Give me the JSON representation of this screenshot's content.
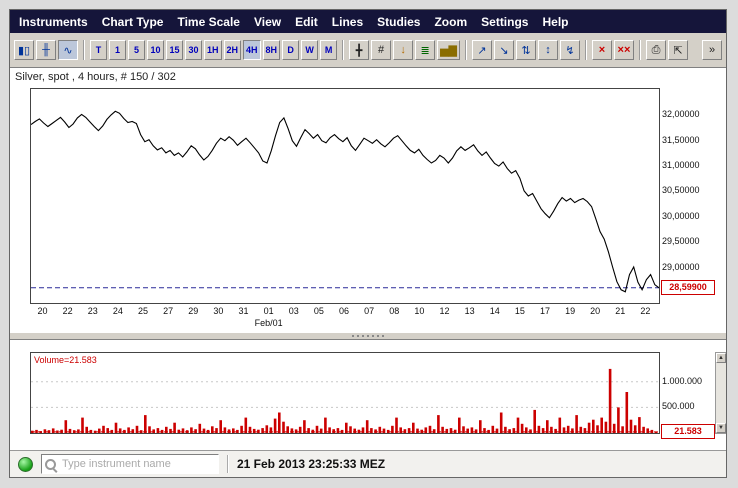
{
  "menu": {
    "items": [
      "Instruments",
      "Chart Type",
      "Time Scale",
      "View",
      "Edit",
      "Lines",
      "Studies",
      "Zoom",
      "Settings",
      "Help"
    ]
  },
  "toolbar": {
    "chart_types": [
      {
        "name": "candlestick-chart",
        "glyph": "▮▯"
      },
      {
        "name": "ohlc-bar-chart",
        "glyph": "╫"
      },
      {
        "name": "line-chart",
        "glyph": "∿"
      }
    ],
    "timeframes": [
      "T",
      "1",
      "5",
      "10",
      "15",
      "30",
      "1H",
      "2H",
      "4H",
      "8H",
      "D",
      "W",
      "M"
    ],
    "tools": [
      {
        "name": "crosshair",
        "glyph": "╋",
        "color": "#222222"
      },
      {
        "name": "hash-grid",
        "glyph": "#",
        "color": "#222222"
      },
      {
        "name": "price-alert",
        "glyph": "↓",
        "color": "#b36b00"
      },
      {
        "name": "levels",
        "glyph": "≣",
        "color": "#006600"
      },
      {
        "name": "indicator-histogram",
        "glyph": "▅▇",
        "color": "#8a6d00"
      },
      {
        "name": "zigzag-up",
        "glyph": "↗",
        "color": "#003399"
      },
      {
        "name": "zigzag-down",
        "glyph": "↘",
        "color": "#003399"
      },
      {
        "name": "zigzag-both",
        "glyph": "⇅",
        "color": "#003399"
      },
      {
        "name": "zigzag-extend",
        "glyph": "↕",
        "color": "#003399"
      },
      {
        "name": "zigzag-delete",
        "glyph": "↯",
        "color": "#003399"
      },
      {
        "name": "delete-line",
        "glyph": "×",
        "color": "#cc0000"
      },
      {
        "name": "delete-all-lines",
        "glyph": "××",
        "color": "#cc0000"
      },
      {
        "name": "print",
        "glyph": "⎙",
        "color": "#222222"
      },
      {
        "name": "pin-window",
        "glyph": "⇱",
        "color": "#222222"
      }
    ],
    "overflow": "»"
  },
  "icons": {
    "scroll_up": "▲",
    "scroll_down": "▼"
  },
  "colors": {
    "menu_bg": "#15153a",
    "accent_red": "#cc0000",
    "dashed_price_line": "#2a2a99"
  },
  "statusbar": {
    "search_placeholder": "Type instrument name",
    "timestamp": "21 Feb 2013 23:25:33 MEZ"
  },
  "chart_data": [
    {
      "type": "line",
      "title": "Silver, spot , 4 hours, # 150 / 302",
      "line_color": "#000000",
      "current_price": 28.599,
      "current_price_label": "28,59900",
      "current_price_line_color": "#2a2a99",
      "ylim": [
        28.3,
        32.52
      ],
      "y_ticks": [
        32.0,
        31.5,
        31.0,
        30.5,
        30.0,
        29.5,
        29.0
      ],
      "y_tick_labels": [
        "32,00000",
        "31,50000",
        "31,00000",
        "30,50000",
        "30,00000",
        "29,50000",
        "29,00000"
      ],
      "x_tick_labels": [
        "20",
        "22",
        "23",
        "24",
        "25",
        "27",
        "29",
        "30",
        "31",
        "01",
        "03",
        "05",
        "06",
        "07",
        "08",
        "10",
        "12",
        "13",
        "14",
        "15",
        "17",
        "19",
        "20",
        "21",
        "22"
      ],
      "x_month_label": "Feb/01",
      "x_month_label_index": 9,
      "values": [
        31.82,
        31.88,
        31.93,
        31.85,
        31.78,
        31.84,
        31.9,
        31.96,
        31.87,
        31.76,
        31.83,
        31.95,
        32.02,
        31.96,
        31.87,
        31.78,
        31.7,
        31.79,
        31.92,
        32.01,
        32.08,
        32.04,
        31.94,
        31.86,
        31.88,
        31.84,
        31.62,
        31.48,
        31.52,
        31.4,
        31.32,
        31.36,
        31.26,
        31.31,
        31.21,
        31.26,
        31.18,
        31.28,
        31.4,
        31.34,
        31.22,
        31.12,
        31.19,
        31.31,
        31.45,
        31.55,
        31.5,
        31.58,
        31.51,
        31.41,
        31.48,
        31.55,
        31.46,
        31.36,
        31.26,
        31.1,
        31.06,
        31.3,
        31.6,
        31.86,
        31.95,
        31.74,
        31.5,
        31.39,
        31.56,
        31.72,
        31.64,
        31.55,
        31.62,
        31.5,
        31.46,
        31.56,
        31.62,
        31.54,
        31.48,
        31.56,
        31.4,
        31.31,
        31.43,
        31.55,
        31.5,
        31.45,
        31.52,
        31.44,
        31.38,
        31.46,
        31.55,
        31.6,
        31.5,
        31.4,
        31.31,
        31.26,
        31.33,
        31.21,
        31.13,
        31.06,
        31.11,
        31.21,
        31.16,
        31.06,
        31.16,
        31.3,
        31.38,
        31.31,
        31.36,
        31.42,
        31.3,
        31.21,
        31.28,
        31.16,
        31.05,
        31.0,
        31.08,
        30.95,
        30.86,
        30.91,
        30.76,
        30.51,
        30.41,
        30.46,
        30.31,
        30.16,
        30.06,
        29.98,
        30.11,
        30.26,
        30.38,
        30.31,
        30.36,
        30.28,
        30.33,
        30.36,
        30.3,
        30.2,
        29.96,
        29.71,
        29.56,
        29.31,
        29.01,
        28.72,
        28.56,
        28.52,
        28.86,
        29.01,
        28.71,
        28.56,
        28.76,
        28.86,
        28.66,
        28.599
      ]
    },
    {
      "type": "bar",
      "label": "Volume=21.583",
      "bar_color": "#cc0000",
      "current_value": 21583,
      "current_value_label": "21.583",
      "ylim": [
        0,
        1560000
      ],
      "y_ticks": [
        1000000,
        500000
      ],
      "y_tick_labels": [
        "1.000.000",
        "500.000"
      ],
      "values": [
        45000,
        60000,
        38000,
        72000,
        55000,
        90000,
        48000,
        65000,
        250000,
        80000,
        55000,
        70000,
        300000,
        120000,
        60000,
        45000,
        85000,
        140000,
        95000,
        60000,
        200000,
        90000,
        60000,
        110000,
        75000,
        140000,
        55000,
        350000,
        130000,
        70000,
        95000,
        60000,
        120000,
        80000,
        200000,
        65000,
        90000,
        55000,
        110000,
        75000,
        180000,
        85000,
        60000,
        130000,
        95000,
        250000,
        110000,
        70000,
        90000,
        60000,
        140000,
        300000,
        120000,
        80000,
        65000,
        95000,
        150000,
        110000,
        280000,
        400000,
        220000,
        130000,
        90000,
        70000,
        120000,
        250000,
        95000,
        65000,
        140000,
        85000,
        300000,
        110000,
        75000,
        95000,
        60000,
        200000,
        130000,
        85000,
        65000,
        110000,
        250000,
        95000,
        70000,
        120000,
        85000,
        60000,
        140000,
        300000,
        110000,
        75000,
        95000,
        200000,
        85000,
        65000,
        110000,
        140000,
        75000,
        350000,
        120000,
        80000,
        95000,
        65000,
        300000,
        130000,
        85000,
        110000,
        70000,
        250000,
        95000,
        60000,
        140000,
        85000,
        400000,
        120000,
        75000,
        95000,
        300000,
        180000,
        110000,
        70000,
        450000,
        140000,
        95000,
        250000,
        120000,
        80000,
        300000,
        110000,
        140000,
        90000,
        350000,
        120000,
        95000,
        200000,
        260000,
        150000,
        300000,
        220000,
        1250000,
        180000,
        500000,
        130000,
        800000,
        260000,
        150000,
        310000,
        120000,
        90000,
        60000,
        21583
      ]
    }
  ]
}
